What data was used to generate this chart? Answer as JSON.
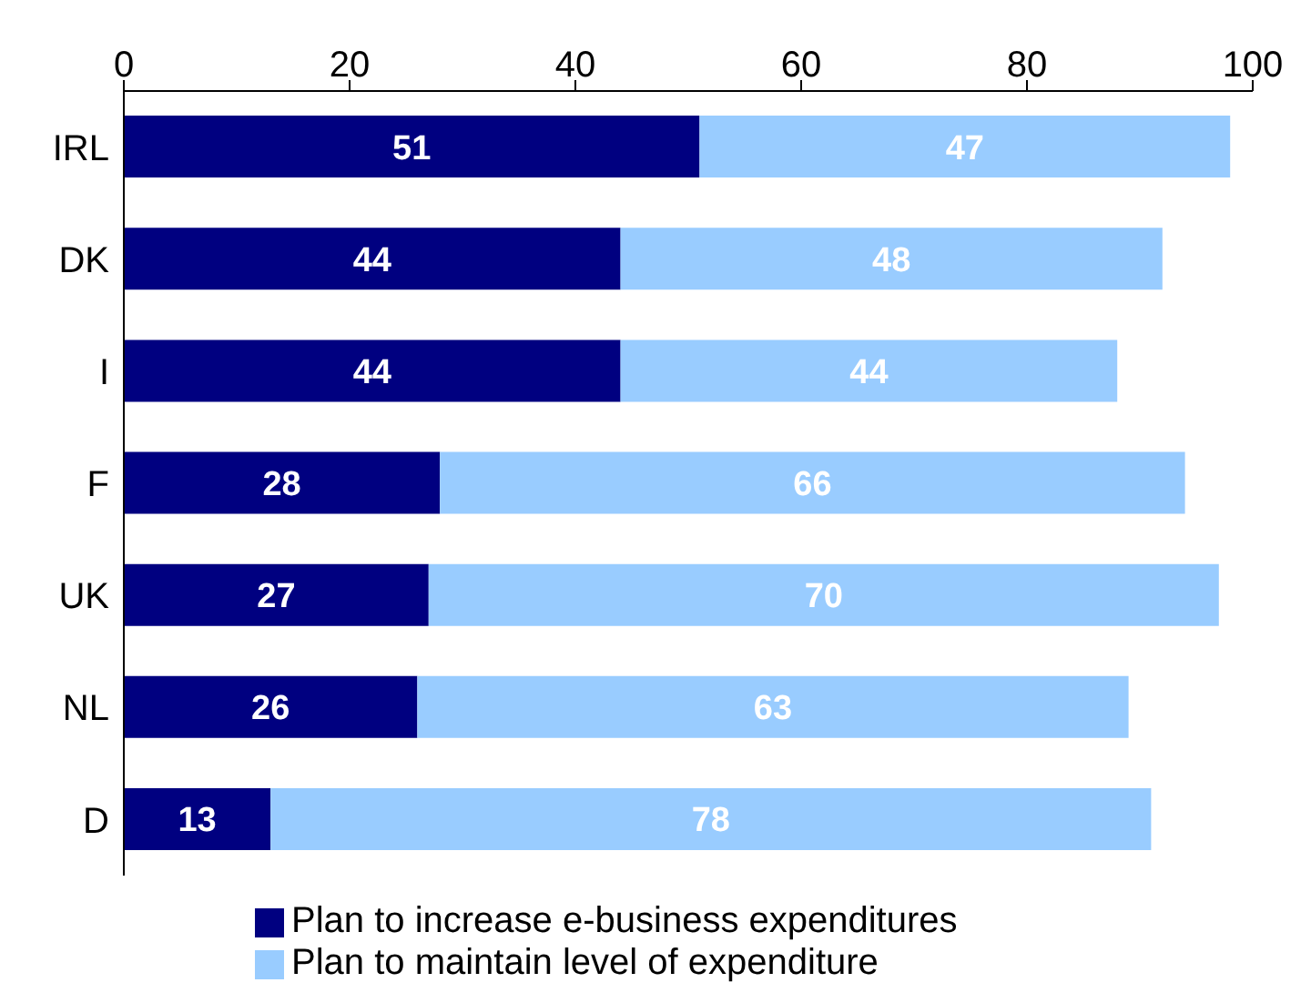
{
  "chart_data": {
    "type": "bar",
    "orientation": "horizontal",
    "stacked": true,
    "categories": [
      "IRL",
      "DK",
      "I",
      "F",
      "UK",
      "NL",
      "D"
    ],
    "series": [
      {
        "name": "Plan to increase e-business expenditures",
        "color": "#000080",
        "values": [
          51,
          44,
          44,
          28,
          27,
          26,
          13
        ]
      },
      {
        "name": "Plan to maintain level of expenditure",
        "color": "#99ccff",
        "values": [
          47,
          48,
          44,
          66,
          70,
          63,
          78
        ]
      }
    ],
    "xlim": [
      0,
      100
    ],
    "xticks": [
      0,
      20,
      40,
      60,
      80,
      100
    ],
    "data_labels": true,
    "grid": false,
    "legend": "bottom"
  }
}
